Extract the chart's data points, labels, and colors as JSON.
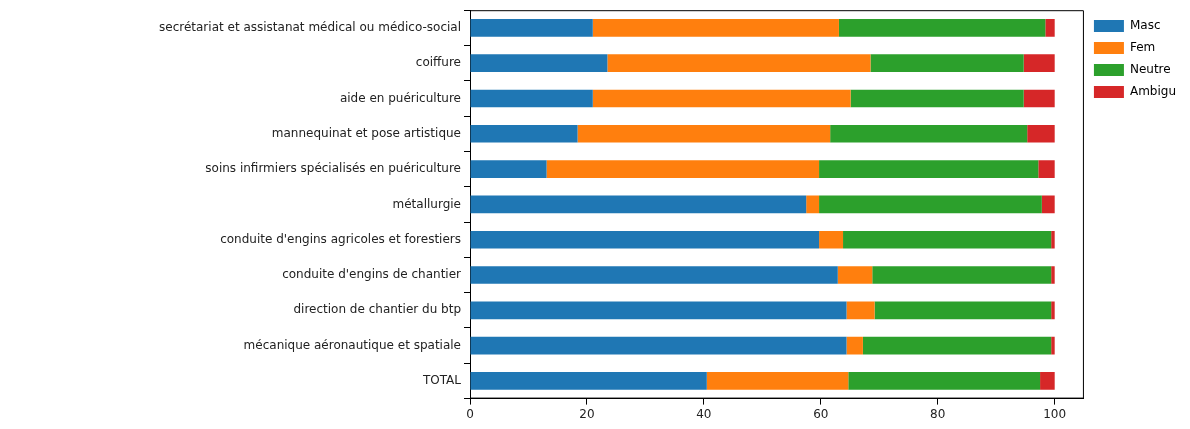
{
  "chart_data": {
    "type": "bar",
    "orientation": "horizontal",
    "stacked": true,
    "categories": [
      "secrétariat et assistanat médical ou médico-social",
      "coiffure",
      "aide en puériculture",
      "mannequinat et pose artistique",
      "soins infirmiers spécialisés en puériculture",
      "métallurgie",
      "conduite d'engins agricoles et forestiers",
      "conduite d'engins de chantier",
      "direction de chantier du btp",
      "mécanique aéronautique et spatiale",
      "TOTAL"
    ],
    "series": [
      {
        "name": "Masc",
        "color": "#1f77b4",
        "values": [
          21,
          23.5,
          21,
          18.4,
          13.1,
          57.5,
          59.7,
          62.9,
          64.4,
          64.4,
          40.5
        ]
      },
      {
        "name": "Fem",
        "color": "#ff7f0e",
        "values": [
          42.1,
          45,
          44.1,
          43.2,
          46.6,
          2.2,
          4.1,
          5.9,
          4.8,
          2.8,
          24.2
        ]
      },
      {
        "name": "Neutre",
        "color": "#2ca02c",
        "values": [
          35.3,
          26.2,
          29.6,
          33.7,
          37.5,
          38.1,
          35.6,
          30.6,
          30.2,
          32.2,
          32.8
        ]
      },
      {
        "name": "Ambigu",
        "color": "#d62728",
        "values": [
          1.6,
          5.3,
          5.3,
          4.7,
          2.8,
          2.2,
          0.6,
          0.6,
          0.6,
          0.6,
          2.5
        ]
      }
    ],
    "xlim": [
      0,
      105
    ],
    "xticks": [
      0,
      20,
      40,
      60,
      80,
      100
    ],
    "grid": false,
    "legend": "top right"
  }
}
